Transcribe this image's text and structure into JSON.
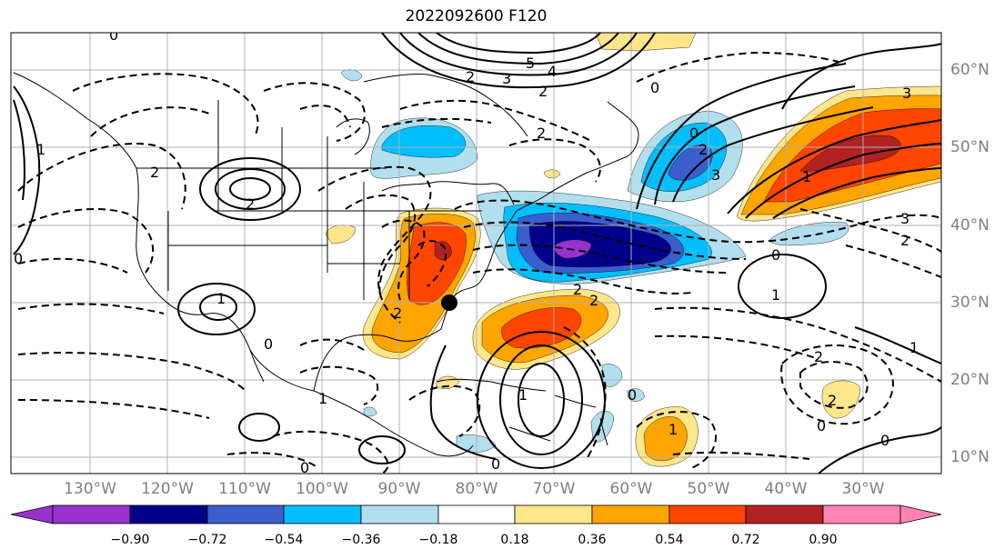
{
  "title": "2022092600 F120",
  "latitude_labels": [
    "60°N",
    "50°N",
    "40°N",
    "30°N",
    "20°N",
    "10°N"
  ],
  "longitude_labels": [
    "130°W",
    "120°W",
    "110°W",
    "100°W",
    "90°W",
    "80°W",
    "70°W",
    "60°W",
    "50°W",
    "40°W",
    "30°W"
  ],
  "colorbar": {
    "ticks": [
      "−0.90",
      "−0.72",
      "−0.54",
      "−0.36",
      "−0.18",
      "0.18",
      "0.36",
      "0.54",
      "0.72",
      "0.90"
    ],
    "colors": [
      "#9932cc",
      "#00008b",
      "#3a5fcd",
      "#00bfff",
      "#b2dfee",
      "#ffffff",
      "#ffe68a",
      "#ffa500",
      "#ff4500",
      "#b22222",
      "#ff83b0"
    ]
  },
  "contour_labels": [
    "0",
    "2",
    "3",
    "4",
    "5",
    "2",
    "0",
    "2",
    "2",
    "1",
    "0",
    "2",
    "1",
    "2",
    "3",
    "2",
    "0",
    "1",
    "1",
    "2",
    "2",
    "0",
    "2",
    "3",
    "3",
    "0",
    "2",
    "1",
    "0",
    "2",
    "1",
    "1",
    "0",
    "0",
    "0",
    "0",
    "1"
  ],
  "marker": "storm-position"
}
